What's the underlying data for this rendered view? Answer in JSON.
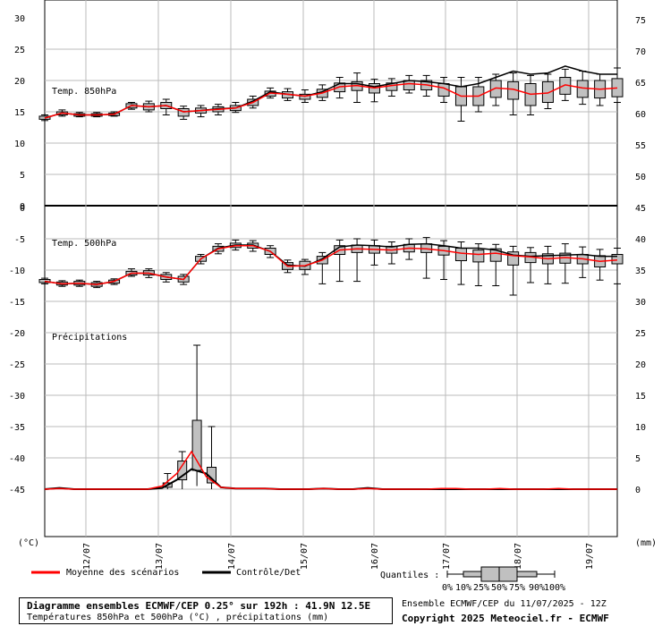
{
  "chart_data": {
    "type": "boxplot-ensemble",
    "axes": {
      "left_ticks_top": [
        "30",
        "25",
        "20",
        "15",
        "10",
        "5",
        "0"
      ],
      "right_ticks_top": [
        "75",
        "70",
        "65",
        "60",
        "55",
        "50"
      ],
      "left_ticks_bottom": [
        "-5",
        "-10",
        "-15",
        "-20",
        "-25",
        "-30",
        "-35",
        "-40",
        "-45"
      ],
      "right_ticks_bottom": [
        "45",
        "40",
        "35",
        "30",
        "25",
        "20",
        "15",
        "10",
        "5",
        "0"
      ],
      "left_unit": "(°C)",
      "right_unit": "(mm)",
      "x_labels": [
        "12/07",
        "13/07",
        "14/07",
        "15/07",
        "16/07",
        "17/07",
        "18/07",
        "19/07"
      ]
    },
    "panels": {
      "t850_label": "Temp. 850hPa",
      "t500_label": "Temp. 500hPa",
      "precip_label": "Précipitations"
    },
    "t850": {
      "mean": [
        14,
        14.8,
        14.5,
        14.5,
        14.6,
        16,
        15.8,
        16,
        15,
        15.2,
        15.4,
        15.6,
        16.5,
        18,
        17.8,
        17.5,
        18,
        19,
        19.2,
        18.8,
        19.2,
        19.5,
        19.3,
        18.8,
        17.5,
        17.5,
        18.8,
        18.6,
        17.8,
        18,
        19.3,
        18.8,
        18.6,
        18.8
      ],
      "control": [
        14,
        14.8,
        14.5,
        14.5,
        14.6,
        16,
        15.8,
        16,
        15,
        15.2,
        15.5,
        15.6,
        16.7,
        18.2,
        17.8,
        17.5,
        18.2,
        19.5,
        19.5,
        19,
        19.5,
        20,
        19.8,
        19.5,
        19,
        19.5,
        20.5,
        21.5,
        21,
        21.2,
        22.3,
        21.5,
        21,
        21
      ],
      "q25": [
        13.8,
        14.5,
        14.3,
        14.3,
        14.4,
        15.6,
        15.3,
        15.5,
        14.3,
        14.8,
        15,
        15.2,
        16,
        17.5,
        17.2,
        17,
        17.3,
        18.2,
        18.4,
        18,
        18.4,
        18.5,
        18.5,
        17.5,
        16,
        16,
        17.3,
        17,
        16,
        16.5,
        17.8,
        17.3,
        17.2,
        17.4
      ],
      "q75": [
        14.3,
        15,
        14.7,
        14.7,
        14.8,
        16.3,
        16.3,
        16.5,
        15.5,
        15.6,
        15.8,
        16,
        17,
        18.3,
        18.2,
        17.8,
        18.6,
        19.6,
        19.8,
        19.5,
        19.6,
        20,
        20,
        19.5,
        19,
        19,
        20,
        19.8,
        19.5,
        19.8,
        20.5,
        20,
        20,
        20.3
      ],
      "q10": [
        13.6,
        14.3,
        14.2,
        14.2,
        14.3,
        15.4,
        15,
        14.5,
        13.8,
        14.2,
        14.5,
        14.9,
        15.6,
        17.2,
        16.8,
        16.5,
        16.8,
        17.2,
        16.5,
        16.6,
        17.5,
        18,
        17.5,
        16.5,
        13.5,
        15,
        16,
        14.5,
        14.5,
        15.5,
        16.8,
        16.2,
        16,
        16.5
      ],
      "q90": [
        14.5,
        15.3,
        14.9,
        14.9,
        15,
        16.5,
        16.7,
        17,
        15.9,
        16,
        16.2,
        16.5,
        17.5,
        18.8,
        18.7,
        18.5,
        19.3,
        20.5,
        21.2,
        20.2,
        20.3,
        20.8,
        20.8,
        20.5,
        20.5,
        20.5,
        21,
        21.2,
        20.8,
        21,
        21.8,
        21.5,
        21,
        22
      ]
    },
    "t500": {
      "mean": [
        -11.8,
        -12.2,
        -12.1,
        -12.3,
        -11.8,
        -10.5,
        -10.5,
        -11.1,
        -11.5,
        -8.2,
        -6.6,
        -6.1,
        -6.1,
        -7,
        -9.4,
        -9.3,
        -8.4,
        -6.8,
        -6.6,
        -6.7,
        -6.8,
        -6.5,
        -6.6,
        -6.9,
        -7.3,
        -7.5,
        -7.3,
        -7.7,
        -7.9,
        -8.2,
        -8,
        -8.2,
        -8.6,
        -8.4
      ],
      "control": [
        -11.8,
        -12.2,
        -12.1,
        -12.3,
        -11.8,
        -10.5,
        -10.5,
        -11.1,
        -11.5,
        -8.2,
        -6.5,
        -6,
        -6,
        -7,
        -9.2,
        -9.4,
        -8.2,
        -6.3,
        -6,
        -6.1,
        -6.3,
        -5.9,
        -5.8,
        -6.1,
        -6.5,
        -6.5,
        -6.8,
        -7.6,
        -7.8,
        -7.7,
        -7.6,
        -7.5,
        -7.8,
        -7.8
      ],
      "q25": [
        -12,
        -12.4,
        -12.4,
        -12.6,
        -12.1,
        -10.8,
        -10.8,
        -11.5,
        -11.9,
        -8.6,
        -7,
        -6.4,
        -6.5,
        -7.5,
        -9.9,
        -9.9,
        -9,
        -7.5,
        -7.2,
        -7.3,
        -7.3,
        -7.1,
        -7.2,
        -7.6,
        -8.5,
        -8.7,
        -8.6,
        -9.2,
        -8.8,
        -9,
        -8.9,
        -9,
        -9.5,
        -9
      ],
      "q75": [
        -11.5,
        -11.9,
        -11.8,
        -12,
        -11.6,
        -10.2,
        -10.1,
        -10.7,
        -11,
        -7.8,
        -6.2,
        -5.7,
        -5.7,
        -6.5,
        -8.8,
        -8.6,
        -7.8,
        -6.1,
        -6,
        -6.1,
        -6.2,
        -5.9,
        -5.8,
        -6.2,
        -6.5,
        -6.8,
        -6.6,
        -7.1,
        -7.2,
        -7.4,
        -7.3,
        -7.5,
        -7.7,
        -7.5
      ],
      "q10": [
        -12.2,
        -12.6,
        -12.6,
        -12.8,
        -12.3,
        -11,
        -11.2,
        -11.9,
        -12.3,
        -9,
        -7.4,
        -6.8,
        -7,
        -8,
        -10.4,
        -10.7,
        -12.2,
        -11.8,
        -11.8,
        -9.2,
        -9,
        -8.3,
        -11.3,
        -11.5,
        -12.3,
        -12.5,
        -12.5,
        -14,
        -12,
        -12.2,
        -12.1,
        -11.2,
        -11.6,
        -12.2
      ],
      "q90": [
        -11.3,
        -11.7,
        -11.6,
        -11.8,
        -11.4,
        -9.8,
        -9.8,
        -10.4,
        -10.7,
        -7.5,
        -5.8,
        -5.2,
        -5.3,
        -6.1,
        -8.4,
        -8.3,
        -7.2,
        -5.2,
        -5,
        -5.2,
        -5.5,
        -5,
        -4.8,
        -5.3,
        -5.5,
        -5.8,
        -5.9,
        -6.2,
        -6.4,
        -6.2,
        -5.8,
        -6.3,
        -6.7,
        -6.5
      ]
    },
    "precip": {
      "mean": [
        0,
        0.1,
        0,
        0,
        0,
        0,
        0,
        0,
        0.5,
        2.5,
        6,
        2,
        0.3,
        0.1,
        0.1,
        0.1,
        0,
        0,
        0,
        0.1,
        0,
        0,
        0.1,
        0,
        0,
        0,
        0,
        0.1,
        0.1,
        0,
        0,
        0.1,
        0,
        0,
        0,
        0.1,
        0,
        0,
        0,
        0
      ],
      "control": [
        0,
        0.2,
        0,
        0,
        0,
        0,
        0,
        0,
        0.2,
        1.5,
        3.2,
        2.5,
        0.3,
        0.1,
        0.1,
        0.1,
        0,
        0,
        0,
        0.1,
        0,
        0,
        0.2,
        0,
        0,
        0,
        0,
        0,
        0,
        0,
        0,
        0,
        0,
        0,
        0,
        0,
        0,
        0,
        0,
        0
      ]
    },
    "precip_boxes": [
      {
        "i": 9,
        "q10": 0,
        "q25": 1.5,
        "q50": 2.5,
        "q75": 4.5,
        "q90": 6
      },
      {
        "i": 10,
        "q10": 0.5,
        "q25": 3,
        "q50": 6,
        "q75": 11,
        "q90": 23
      },
      {
        "i": 11,
        "q10": 0,
        "q25": 1,
        "q50": 2,
        "q75": 3.5,
        "q90": 10
      },
      {
        "i": 8,
        "q10": 0,
        "q25": 0.3,
        "q50": 0.5,
        "q75": 1,
        "q90": 2.5
      }
    ],
    "legend": {
      "mean_label": "Moyenne des scénarios",
      "control_label": "Contrôle/Det",
      "quantiles_label": "Quantiles :",
      "quantile_ticks": [
        "0%",
        "10%",
        "25%",
        "50%",
        "75%",
        "90%",
        "100%"
      ]
    },
    "colors": {
      "mean": "#ff0000",
      "control": "#000000",
      "box": "#c0c0c0",
      "grid": "#bbbbbb"
    }
  },
  "title": {
    "line1": "Diagramme ensembles ECMWF/CEP 0.25° sur 192h : 41.9N 12.5E",
    "line2": "Températures 850hPa et 500hPa (°C) , précipitations (mm)"
  },
  "footer": {
    "run": "Ensemble ECMWF/CEP du 11/07/2025 - 12Z",
    "copyright": "Copyright 2025 Meteociel.fr - ECMWF"
  }
}
